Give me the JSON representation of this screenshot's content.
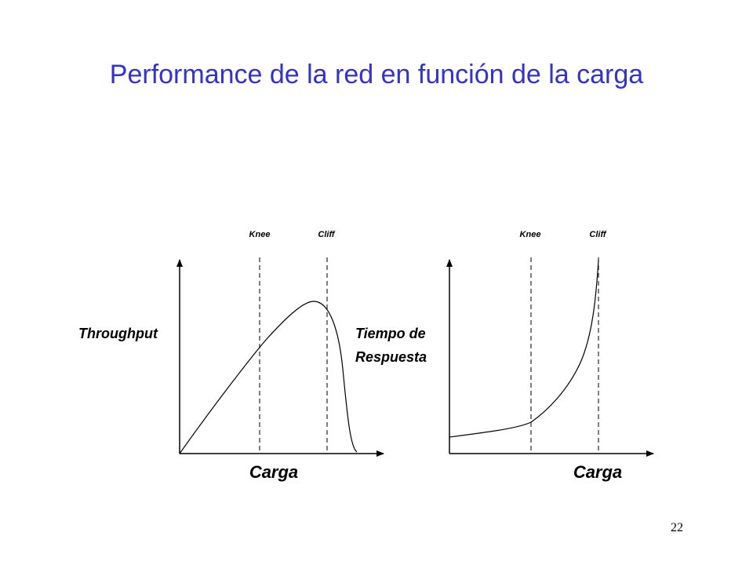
{
  "slide": {
    "title": "Performance de la red en función de la carga",
    "page_number": "22"
  },
  "left_plot": {
    "y_label": "Throughput",
    "x_label": "Carga",
    "knee_label": "Knee",
    "cliff_label": "Cliff"
  },
  "right_plot": {
    "y_label_line1": "Tiempo de",
    "y_label_line2": "Respuesta",
    "x_label": "Carga",
    "knee_label": "Knee",
    "cliff_label": "Cliff"
  },
  "colors": {
    "title": "#3333cc",
    "lines": "#000000"
  }
}
